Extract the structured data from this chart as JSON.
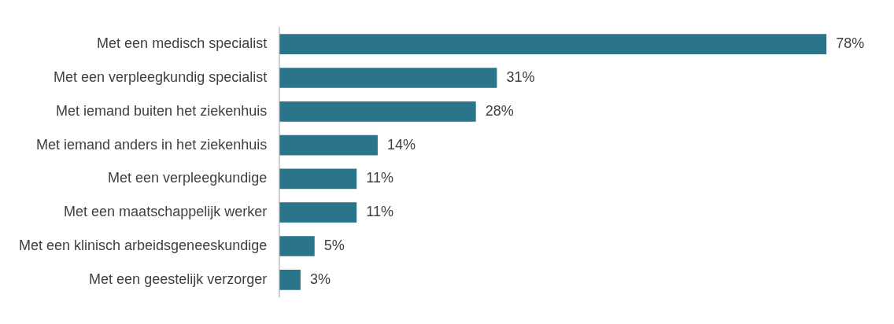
{
  "chart_data": {
    "type": "bar",
    "orientation": "horizontal",
    "categories": [
      "Met een medisch specialist",
      "Met een verpleegkundig specialist",
      "Met iemand buiten het ziekenhuis",
      "Met iemand anders in het ziekenhuis",
      "Met een verpleegkundige",
      "Met een maatschappelijk werker",
      "Met een klinisch arbeidsgeneeskundige",
      "Met een geestelijk verzorger"
    ],
    "values": [
      78,
      31,
      28,
      14,
      11,
      11,
      5,
      3
    ],
    "value_labels": [
      "78%",
      "31%",
      "28%",
      "14%",
      "11%",
      "11%",
      "5%",
      "3%"
    ],
    "color": "#2a7589"
  }
}
